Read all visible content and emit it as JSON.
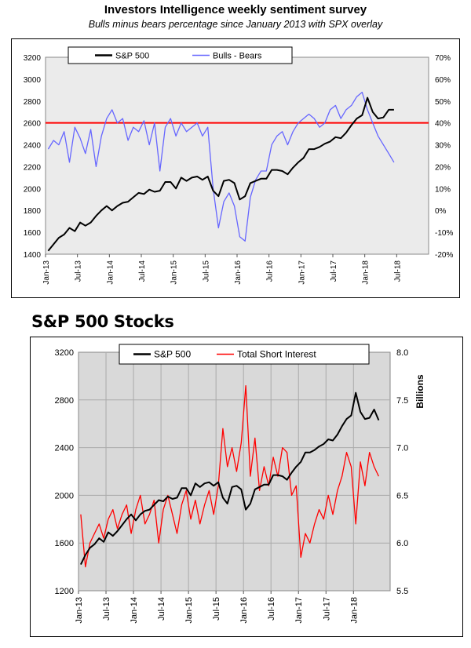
{
  "chart_data": [
    {
      "type": "line",
      "title": "Investors Intelligence weekly sentiment survey",
      "subtitle": "Bulls minus bears percentage since January 2013 with SPX overlay",
      "x_tick_labels": [
        "Jan-13",
        "Jul-13",
        "Jan-14",
        "Jul-14",
        "Jan-15",
        "Jul-15",
        "Jan-16",
        "Jul-16",
        "Jan-17",
        "Jul-17",
        "Jan-18",
        "Jul-18"
      ],
      "y_left": {
        "ticks": [
          "1400",
          "1600",
          "1800",
          "2000",
          "2200",
          "2400",
          "2600",
          "2800",
          "3000",
          "3200"
        ],
        "ylim": [
          1400,
          3200
        ]
      },
      "y_right": {
        "ticks": [
          "-20%",
          "-10%",
          "0%",
          "10%",
          "20%",
          "30%",
          "40%",
          "50%",
          "60%",
          "70%"
        ],
        "ylim": [
          -20,
          70
        ]
      },
      "reference_line": {
        "axis": "right",
        "value": 40,
        "color": "#ff0000"
      },
      "legend_placement": "top-left",
      "plot_background": "#ebebeb",
      "series": [
        {
          "name": "S&P 500",
          "axis": "left",
          "color": "#000000",
          "x": [
            "2013-01",
            "2013-02",
            "2013-03",
            "2013-04",
            "2013-05",
            "2013-06",
            "2013-07",
            "2013-08",
            "2013-09",
            "2013-10",
            "2013-11",
            "2013-12",
            "2014-01",
            "2014-02",
            "2014-03",
            "2014-04",
            "2014-05",
            "2014-06",
            "2014-07",
            "2014-08",
            "2014-09",
            "2014-10",
            "2014-11",
            "2014-12",
            "2015-01",
            "2015-02",
            "2015-03",
            "2015-04",
            "2015-05",
            "2015-06",
            "2015-07",
            "2015-08",
            "2015-09",
            "2015-10",
            "2015-11",
            "2015-12",
            "2016-01",
            "2016-02",
            "2016-03",
            "2016-04",
            "2016-05",
            "2016-06",
            "2016-07",
            "2016-08",
            "2016-09",
            "2016-10",
            "2016-11",
            "2016-12",
            "2017-01",
            "2017-02",
            "2017-03",
            "2017-04",
            "2017-05",
            "2017-06",
            "2017-07",
            "2017-08",
            "2017-09",
            "2017-10",
            "2017-11",
            "2017-12",
            "2018-01",
            "2018-02",
            "2018-03",
            "2018-04",
            "2018-05",
            "2018-06"
          ],
          "y": [
            1430,
            1490,
            1550,
            1580,
            1640,
            1610,
            1690,
            1660,
            1690,
            1750,
            1800,
            1840,
            1800,
            1840,
            1870,
            1880,
            1920,
            1960,
            1950,
            1990,
            1970,
            1980,
            2060,
            2060,
            2000,
            2100,
            2070,
            2100,
            2110,
            2080,
            2110,
            1980,
            1930,
            2070,
            2080,
            2050,
            1900,
            1930,
            2050,
            2070,
            2090,
            2090,
            2170,
            2170,
            2160,
            2130,
            2190,
            2240,
            2280,
            2360,
            2360,
            2380,
            2410,
            2430,
            2470,
            2460,
            2510,
            2580,
            2640,
            2670,
            2830,
            2700,
            2640,
            2650,
            2720,
            2720
          ]
        },
        {
          "name": "Bulls - Bears",
          "axis": "right",
          "color": "#6666ff",
          "x": [
            "2013-01",
            "2013-02",
            "2013-03",
            "2013-04",
            "2013-05",
            "2013-06",
            "2013-07",
            "2013-08",
            "2013-09",
            "2013-10",
            "2013-11",
            "2013-12",
            "2014-01",
            "2014-02",
            "2014-03",
            "2014-04",
            "2014-05",
            "2014-06",
            "2014-07",
            "2014-08",
            "2014-09",
            "2014-10",
            "2014-11",
            "2014-12",
            "2015-01",
            "2015-02",
            "2015-03",
            "2015-04",
            "2015-05",
            "2015-06",
            "2015-07",
            "2015-08",
            "2015-09",
            "2015-10",
            "2015-11",
            "2015-12",
            "2016-01",
            "2016-02",
            "2016-03",
            "2016-04",
            "2016-05",
            "2016-06",
            "2016-07",
            "2016-08",
            "2016-09",
            "2016-10",
            "2016-11",
            "2016-12",
            "2017-01",
            "2017-02",
            "2017-03",
            "2017-04",
            "2017-05",
            "2017-06",
            "2017-07",
            "2017-08",
            "2017-09",
            "2017-10",
            "2017-11",
            "2017-12",
            "2018-01",
            "2018-02",
            "2018-03",
            "2018-04",
            "2018-05",
            "2018-06"
          ],
          "y": [
            28,
            32,
            30,
            36,
            22,
            38,
            33,
            26,
            37,
            20,
            34,
            42,
            46,
            40,
            42,
            32,
            38,
            36,
            41,
            30,
            40,
            18,
            38,
            42,
            34,
            40,
            36,
            38,
            40,
            34,
            38,
            10,
            -8,
            4,
            8,
            2,
            -12,
            -14,
            6,
            14,
            18,
            18,
            30,
            34,
            36,
            30,
            36,
            40,
            42,
            44,
            42,
            38,
            40,
            46,
            48,
            42,
            46,
            48,
            52,
            54,
            46,
            40,
            34,
            30,
            26,
            22
          ]
        }
      ]
    },
    {
      "type": "line",
      "title": "S&P 500 Stocks",
      "x_tick_labels": [
        "Jan-13",
        "Jul-13",
        "Jan-14",
        "Jul-14",
        "Jan-15",
        "Jul-15",
        "Jan-16",
        "Jul-16",
        "Jan-17",
        "Jul-17",
        "Jan-18"
      ],
      "y_left": {
        "ticks": [
          "1200",
          "1600",
          "2000",
          "2400",
          "2800",
          "3200"
        ],
        "ylim": [
          1200,
          3200
        ]
      },
      "y_right": {
        "ticks": [
          "5.5",
          "6.0",
          "6.5",
          "7.0",
          "7.5",
          "8.0"
        ],
        "ylim": [
          5.5,
          8.0
        ],
        "label": "Billions"
      },
      "legend_placement": "top-center",
      "plot_background": "#d9d9d9",
      "series": [
        {
          "name": "S&P 500",
          "axis": "left",
          "color": "#000000",
          "x": [
            "2013-01",
            "2013-02",
            "2013-03",
            "2013-04",
            "2013-05",
            "2013-06",
            "2013-07",
            "2013-08",
            "2013-09",
            "2013-10",
            "2013-11",
            "2013-12",
            "2014-01",
            "2014-02",
            "2014-03",
            "2014-04",
            "2014-05",
            "2014-06",
            "2014-07",
            "2014-08",
            "2014-09",
            "2014-10",
            "2014-11",
            "2014-12",
            "2015-01",
            "2015-02",
            "2015-03",
            "2015-04",
            "2015-05",
            "2015-06",
            "2015-07",
            "2015-08",
            "2015-09",
            "2015-10",
            "2015-11",
            "2015-12",
            "2016-01",
            "2016-02",
            "2016-03",
            "2016-04",
            "2016-05",
            "2016-06",
            "2016-07",
            "2016-08",
            "2016-09",
            "2016-10",
            "2016-11",
            "2016-12",
            "2017-01",
            "2017-02",
            "2017-03",
            "2017-04",
            "2017-05",
            "2017-06",
            "2017-07",
            "2017-08",
            "2017-09",
            "2017-10",
            "2017-11",
            "2017-12",
            "2018-01",
            "2018-02",
            "2018-03",
            "2018-04",
            "2018-05",
            "2018-06"
          ],
          "y": [
            1420,
            1500,
            1560,
            1590,
            1640,
            1610,
            1690,
            1660,
            1700,
            1750,
            1800,
            1840,
            1790,
            1840,
            1870,
            1880,
            1920,
            1960,
            1950,
            1990,
            1970,
            1980,
            2060,
            2060,
            2000,
            2100,
            2070,
            2100,
            2110,
            2080,
            2110,
            1980,
            1930,
            2070,
            2080,
            2050,
            1880,
            1930,
            2050,
            2070,
            2090,
            2090,
            2170,
            2170,
            2160,
            2130,
            2190,
            2240,
            2280,
            2360,
            2360,
            2380,
            2410,
            2430,
            2470,
            2460,
            2510,
            2580,
            2640,
            2670,
            2860,
            2700,
            2640,
            2650,
            2720,
            2630
          ]
        },
        {
          "name": "Total Short Interest",
          "axis": "right",
          "color": "#ff0000",
          "x": [
            "2013-01",
            "2013-02",
            "2013-03",
            "2013-04",
            "2013-05",
            "2013-06",
            "2013-07",
            "2013-08",
            "2013-09",
            "2013-10",
            "2013-11",
            "2013-12",
            "2014-01",
            "2014-02",
            "2014-03",
            "2014-04",
            "2014-05",
            "2014-06",
            "2014-07",
            "2014-08",
            "2014-09",
            "2014-10",
            "2014-11",
            "2014-12",
            "2015-01",
            "2015-02",
            "2015-03",
            "2015-04",
            "2015-05",
            "2015-06",
            "2015-07",
            "2015-08",
            "2015-09",
            "2015-10",
            "2015-11",
            "2015-12",
            "2016-01",
            "2016-02",
            "2016-03",
            "2016-04",
            "2016-05",
            "2016-06",
            "2016-07",
            "2016-08",
            "2016-09",
            "2016-10",
            "2016-11",
            "2016-12",
            "2017-01",
            "2017-02",
            "2017-03",
            "2017-04",
            "2017-05",
            "2017-06",
            "2017-07",
            "2017-08",
            "2017-09",
            "2017-10",
            "2017-11",
            "2017-12",
            "2018-01",
            "2018-02",
            "2018-03",
            "2018-04",
            "2018-05",
            "2018-06"
          ],
          "y": [
            6.3,
            5.75,
            6.0,
            6.1,
            6.2,
            6.05,
            6.25,
            6.35,
            6.15,
            6.3,
            6.4,
            6.1,
            6.35,
            6.5,
            6.2,
            6.3,
            6.45,
            6.0,
            6.35,
            6.5,
            6.3,
            6.1,
            6.4,
            6.55,
            6.25,
            6.45,
            6.2,
            6.4,
            6.55,
            6.3,
            6.6,
            7.2,
            6.8,
            7.0,
            6.75,
            7.05,
            7.65,
            6.7,
            7.1,
            6.55,
            6.8,
            6.6,
            6.9,
            6.7,
            7.0,
            6.95,
            6.5,
            6.6,
            5.85,
            6.1,
            6.0,
            6.2,
            6.35,
            6.25,
            6.5,
            6.3,
            6.55,
            6.7,
            6.95,
            6.8,
            6.2,
            6.85,
            6.6,
            6.95,
            6.8,
            6.7
          ]
        }
      ]
    }
  ]
}
